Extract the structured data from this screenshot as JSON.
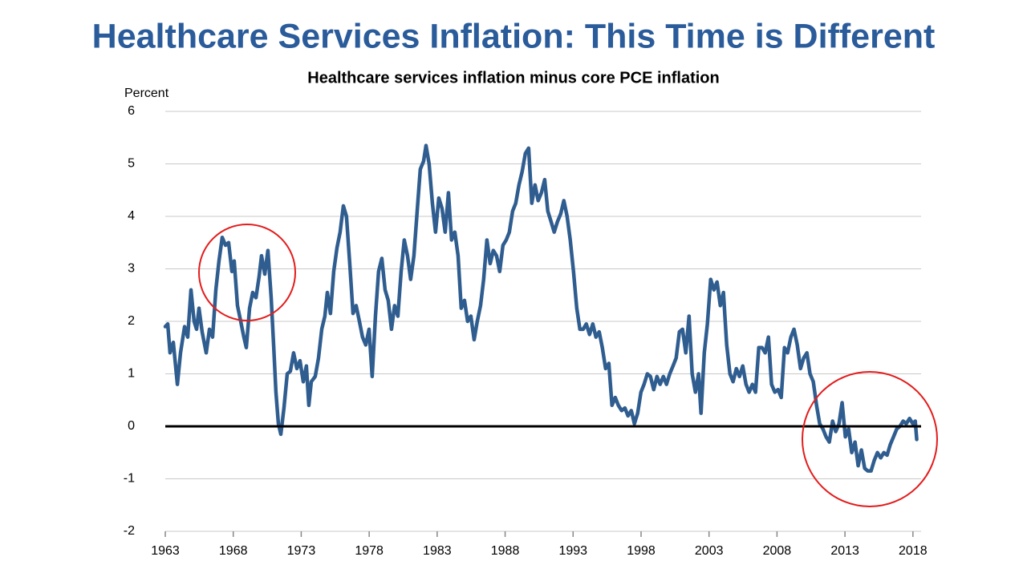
{
  "chart_data": {
    "type": "line",
    "title": "Healthcare Services Inflation: This Time is Different",
    "subtitle": "Healthcare services inflation minus core PCE inflation",
    "y_label": "Percent",
    "x": [
      1963.0,
      1963.18,
      1963.35,
      1963.59,
      1963.89,
      1964.12,
      1964.42,
      1964.65,
      1964.89,
      1965.12,
      1965.3,
      1965.48,
      1965.71,
      1966.01,
      1966.25,
      1966.48,
      1966.72,
      1966.95,
      1967.19,
      1967.43,
      1967.66,
      1967.9,
      1968.07,
      1968.31,
      1968.55,
      1968.78,
      1968.96,
      1969.2,
      1969.43,
      1969.67,
      1969.9,
      1970.08,
      1970.32,
      1970.55,
      1970.79,
      1970.97,
      1971.14,
      1971.32,
      1971.5,
      1971.73,
      1971.97,
      1972.2,
      1972.44,
      1972.68,
      1972.91,
      1973.15,
      1973.38,
      1973.56,
      1973.74,
      1974.03,
      1974.27,
      1974.51,
      1974.74,
      1974.92,
      1975.15,
      1975.39,
      1975.63,
      1975.86,
      1976.1,
      1976.33,
      1976.57,
      1976.81,
      1977.04,
      1977.28,
      1977.51,
      1977.75,
      1977.99,
      1978.22,
      1978.46,
      1978.69,
      1978.93,
      1979.17,
      1979.4,
      1979.64,
      1979.87,
      1980.11,
      1980.35,
      1980.58,
      1980.82,
      1981.05,
      1981.29,
      1981.53,
      1981.76,
      1982.0,
      1982.18,
      1982.41,
      1982.65,
      1982.88,
      1983.12,
      1983.36,
      1983.59,
      1983.83,
      1984.06,
      1984.3,
      1984.54,
      1984.77,
      1985.01,
      1985.24,
      1985.48,
      1985.72,
      1985.95,
      1986.19,
      1986.42,
      1986.66,
      1986.9,
      1987.13,
      1987.37,
      1987.6,
      1987.84,
      1988.08,
      1988.31,
      1988.55,
      1988.78,
      1989.02,
      1989.25,
      1989.49,
      1989.73,
      1989.96,
      1990.2,
      1990.43,
      1990.67,
      1990.91,
      1991.14,
      1991.38,
      1991.61,
      1991.85,
      1992.09,
      1992.32,
      1992.56,
      1992.79,
      1993.03,
      1993.27,
      1993.5,
      1993.74,
      1993.97,
      1994.21,
      1994.45,
      1994.68,
      1994.92,
      1995.15,
      1995.39,
      1995.63,
      1995.86,
      1996.1,
      1996.33,
      1996.57,
      1996.81,
      1997.04,
      1997.28,
      1997.51,
      1997.75,
      1997.99,
      1998.22,
      1998.46,
      1998.69,
      1998.93,
      1999.17,
      1999.4,
      1999.64,
      1999.87,
      2000.11,
      2000.35,
      2000.58,
      2000.82,
      2001.05,
      2001.29,
      2001.53,
      2001.76,
      2002.0,
      2002.23,
      2002.41,
      2002.65,
      2002.88,
      2003.12,
      2003.36,
      2003.59,
      2003.83,
      2004.06,
      2004.3,
      2004.54,
      2004.77,
      2005.01,
      2005.24,
      2005.48,
      2005.72,
      2005.95,
      2006.19,
      2006.42,
      2006.66,
      2006.9,
      2007.13,
      2007.37,
      2007.6,
      2007.84,
      2008.08,
      2008.31,
      2008.55,
      2008.78,
      2009.02,
      2009.25,
      2009.49,
      2009.73,
      2009.96,
      2010.2,
      2010.43,
      2010.67,
      2010.91,
      2011.14,
      2011.38,
      2011.61,
      2011.85,
      2012.09,
      2012.32,
      2012.56,
      2012.79,
      2013.03,
      2013.27,
      2013.5,
      2013.74,
      2013.97,
      2014.21,
      2014.45,
      2014.68,
      2014.92,
      2015.15,
      2015.39,
      2015.63,
      2015.86,
      2016.1,
      2016.33,
      2016.57,
      2016.81,
      2017.04,
      2017.28,
      2017.51,
      2017.75,
      2017.99,
      2018.17,
      2018.28
    ],
    "series": [
      {
        "color": "#2f5d8f",
        "values": [
          1.9,
          1.95,
          1.4,
          1.6,
          0.8,
          1.4,
          1.9,
          1.7,
          2.6,
          2.0,
          1.85,
          2.25,
          1.8,
          1.4,
          1.85,
          1.7,
          2.6,
          3.15,
          3.6,
          3.45,
          3.5,
          2.95,
          3.15,
          2.3,
          2.0,
          1.7,
          1.5,
          2.25,
          2.55,
          2.45,
          2.85,
          3.25,
          2.9,
          3.35,
          2.45,
          1.55,
          0.65,
          0.05,
          -0.15,
          0.35,
          1.0,
          1.05,
          1.4,
          1.1,
          1.25,
          0.85,
          1.15,
          0.4,
          0.85,
          0.95,
          1.3,
          1.85,
          2.1,
          2.55,
          2.15,
          2.95,
          3.4,
          3.7,
          4.2,
          4.0,
          3.1,
          2.15,
          2.3,
          2.0,
          1.7,
          1.55,
          1.85,
          0.95,
          2.1,
          2.95,
          3.2,
          2.6,
          2.4,
          1.85,
          2.3,
          2.1,
          2.95,
          3.55,
          3.25,
          2.8,
          3.25,
          4.1,
          4.9,
          5.05,
          5.35,
          5.0,
          4.25,
          3.7,
          4.35,
          4.15,
          3.7,
          4.45,
          3.55,
          3.7,
          3.25,
          2.25,
          2.4,
          2.0,
          2.1,
          1.65,
          2.0,
          2.3,
          2.8,
          3.55,
          3.1,
          3.35,
          3.25,
          2.95,
          3.45,
          3.55,
          3.7,
          4.1,
          4.25,
          4.6,
          4.85,
          5.2,
          5.3,
          4.25,
          4.6,
          4.3,
          4.45,
          4.7,
          4.1,
          3.9,
          3.7,
          3.9,
          4.05,
          4.3,
          4.0,
          3.55,
          2.95,
          2.25,
          1.85,
          1.85,
          1.95,
          1.75,
          1.95,
          1.7,
          1.8,
          1.5,
          1.1,
          1.2,
          0.4,
          0.55,
          0.4,
          0.3,
          0.35,
          0.2,
          0.3,
          0.05,
          0.25,
          0.65,
          0.8,
          1.0,
          0.95,
          0.7,
          0.95,
          0.8,
          0.95,
          0.8,
          1.0,
          1.15,
          1.3,
          1.8,
          1.85,
          1.4,
          2.1,
          1.0,
          0.65,
          1.0,
          0.25,
          1.4,
          1.95,
          2.8,
          2.6,
          2.75,
          2.3,
          2.55,
          1.55,
          1.0,
          0.85,
          1.1,
          0.95,
          1.15,
          0.8,
          0.65,
          0.8,
          0.65,
          1.5,
          1.5,
          1.4,
          1.7,
          0.8,
          0.65,
          0.7,
          0.55,
          1.5,
          1.4,
          1.7,
          1.85,
          1.55,
          1.1,
          1.3,
          1.4,
          1.0,
          0.85,
          0.4,
          0.05,
          -0.05,
          -0.2,
          -0.3,
          0.1,
          -0.1,
          0.05,
          0.45,
          -0.2,
          -0.05,
          -0.5,
          -0.3,
          -0.75,
          -0.45,
          -0.8,
          -0.85,
          -0.85,
          -0.65,
          -0.5,
          -0.6,
          -0.5,
          -0.55,
          -0.35,
          -0.2,
          -0.05,
          0.0,
          0.1,
          0.05,
          0.15,
          0.05,
          0.1,
          -0.25
        ]
      }
    ],
    "xlim": [
      1963,
      2018.6
    ],
    "xticks": [
      1963,
      1968,
      1973,
      1978,
      1983,
      1988,
      1993,
      1998,
      2003,
      2008,
      2013,
      2018
    ],
    "ylim": [
      -2,
      6
    ],
    "yticks": [
      -2,
      -1,
      0,
      1,
      2,
      3,
      4,
      5,
      6
    ],
    "grid": true,
    "zero_line": true
  }
}
